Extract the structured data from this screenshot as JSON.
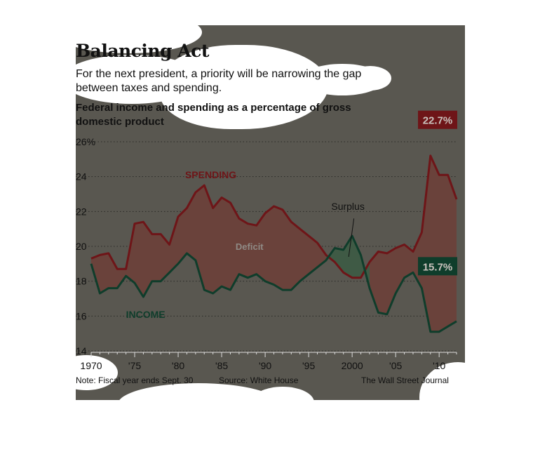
{
  "header": {
    "title": "Balancing Act",
    "subtitle": "For the next president, a priority will be narrowing the gap between taxes and spending.",
    "chart_heading": "Federal income and spending as a percentage of gross domestic product"
  },
  "footer": {
    "note": "Note: Fiscal year ends Sept. 30",
    "source": "Source: White House",
    "credit": "The Wall Street Journal"
  },
  "colors": {
    "background": "#595750",
    "spending": "#6e1518",
    "income": "#0f3d2b",
    "deficit_fill": "#6a423b",
    "surplus_fill": "#3f5a45",
    "grid": "#2a2a26"
  },
  "chart_data": {
    "type": "area",
    "title": "Federal income and spending as a percentage of gross domestic product",
    "x": [
      1970,
      1971,
      1972,
      1973,
      1974,
      1975,
      1976,
      1977,
      1978,
      1979,
      1980,
      1981,
      1982,
      1983,
      1984,
      1985,
      1986,
      1987,
      1988,
      1989,
      1990,
      1991,
      1992,
      1993,
      1994,
      1995,
      1996,
      1997,
      1998,
      1999,
      2000,
      2001,
      2002,
      2003,
      2004,
      2005,
      2006,
      2007,
      2008,
      2009,
      2010,
      2011,
      2012
    ],
    "x_tick_values": [
      1970,
      1975,
      1980,
      1985,
      1990,
      1995,
      2000,
      2005,
      2010
    ],
    "x_tick_labels": [
      "1970",
      "'75",
      "'80",
      "'85",
      "'90",
      "'95",
      "2000",
      "'05",
      "'10"
    ],
    "ylim": [
      14,
      26
    ],
    "y_ticks": [
      14,
      16,
      18,
      20,
      22,
      24,
      26
    ],
    "y_tick_labels": [
      "14",
      "16",
      "18",
      "20",
      "22",
      "24",
      "26%"
    ],
    "grid": "horizontal dotted",
    "series": [
      {
        "name": "SPENDING",
        "values": [
          19.3,
          19.5,
          19.6,
          18.7,
          18.7,
          21.3,
          21.4,
          20.7,
          20.7,
          20.1,
          21.7,
          22.2,
          23.1,
          23.5,
          22.2,
          22.8,
          22.5,
          21.6,
          21.3,
          21.2,
          21.9,
          22.3,
          22.1,
          21.4,
          21.0,
          20.6,
          20.2,
          19.5,
          19.1,
          18.5,
          18.2,
          18.2,
          19.1,
          19.7,
          19.6,
          19.9,
          20.1,
          19.7,
          20.8,
          25.2,
          24.1,
          24.1,
          22.7
        ]
      },
      {
        "name": "INCOME",
        "values": [
          19.0,
          17.3,
          17.6,
          17.6,
          18.3,
          17.9,
          17.1,
          18.0,
          18.0,
          18.5,
          19.0,
          19.6,
          19.2,
          17.5,
          17.3,
          17.7,
          17.5,
          18.4,
          18.2,
          18.4,
          18.0,
          17.8,
          17.5,
          17.5,
          18.0,
          18.4,
          18.8,
          19.2,
          19.9,
          19.8,
          20.6,
          19.5,
          17.6,
          16.2,
          16.1,
          17.3,
          18.2,
          18.5,
          17.6,
          15.1,
          15.1,
          15.4,
          15.7
        ]
      }
    ],
    "annotations": {
      "deficit": "Deficit",
      "surplus": "Surplus",
      "spending_last": "22.7%",
      "income_last": "15.7%"
    }
  }
}
